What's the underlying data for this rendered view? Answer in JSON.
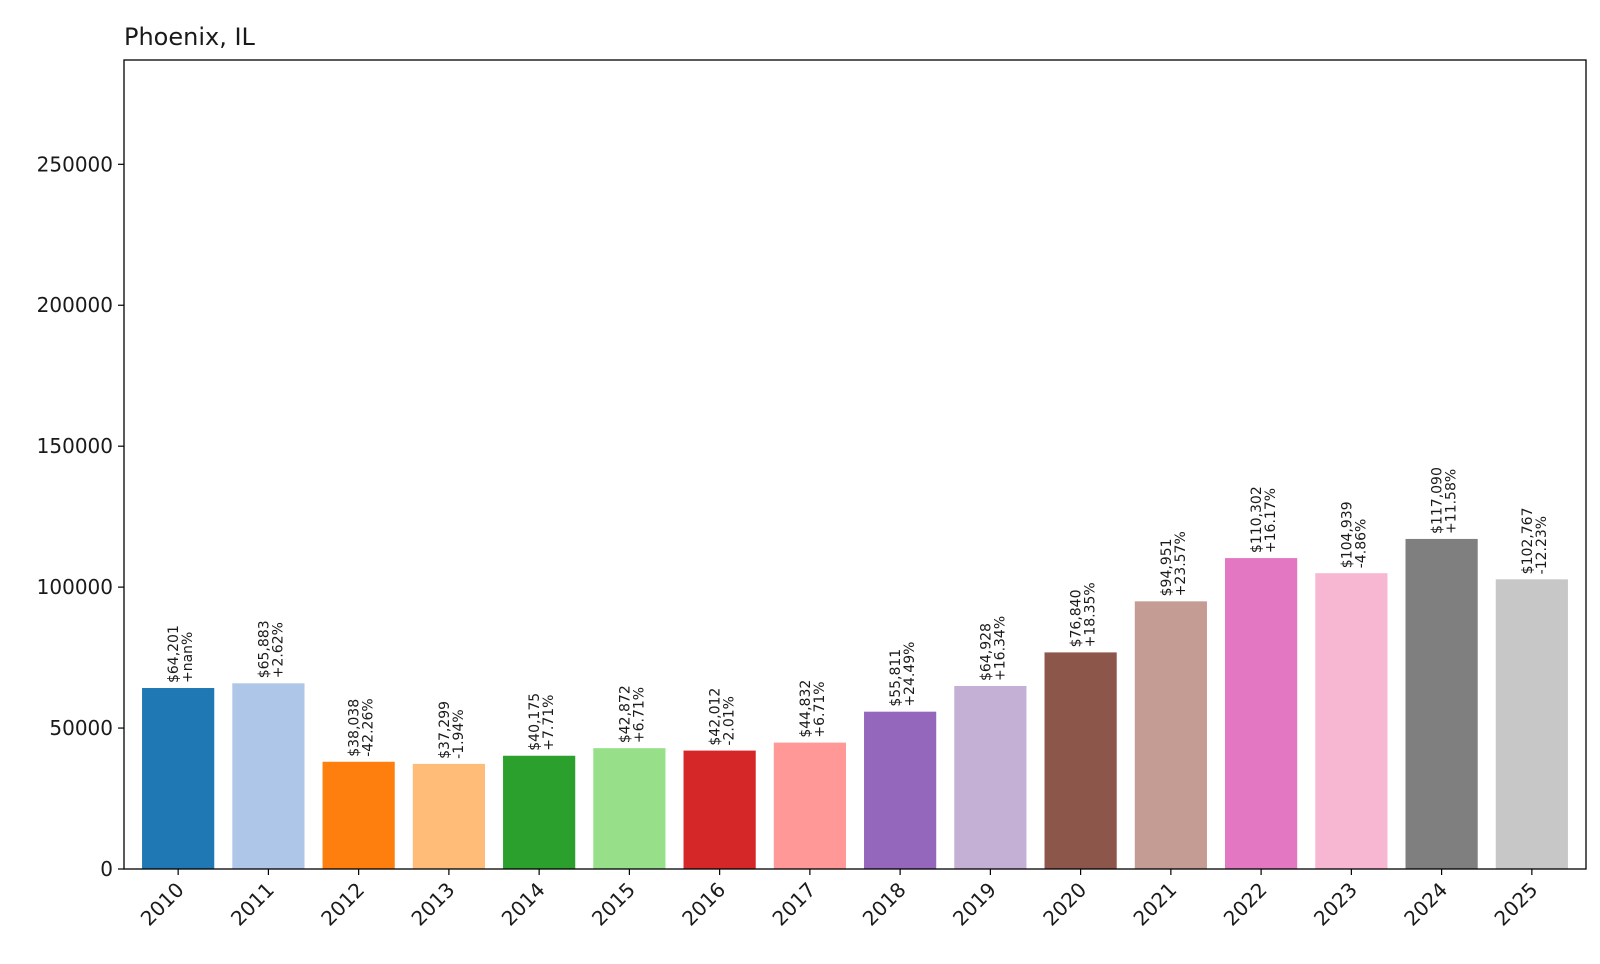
{
  "chart_data": {
    "type": "bar",
    "title": "Phoenix, IL",
    "xlabel": "",
    "ylabel": "",
    "ylim": [
      0,
      287000
    ],
    "yticks": [
      0,
      50000,
      100000,
      150000,
      200000,
      250000
    ],
    "ytick_labels": [
      "0",
      "50000",
      "100000",
      "150000",
      "200000",
      "250000"
    ],
    "grid": false,
    "legend": null,
    "categories": [
      "2010",
      "2011",
      "2012",
      "2013",
      "2014",
      "2015",
      "2016",
      "2017",
      "2018",
      "2019",
      "2020",
      "2021",
      "2022",
      "2023",
      "2024",
      "2025"
    ],
    "values": [
      64201,
      65883,
      38038,
      37299,
      40175,
      42872,
      42012,
      44832,
      55811,
      64928,
      76840,
      94951,
      110302,
      104939,
      117090,
      102767
    ],
    "value_labels": [
      "$64,201",
      "$65,883",
      "$38,038",
      "$37,299",
      "$40,175",
      "$42,872",
      "$42,012",
      "$44,832",
      "$55,811",
      "$64,928",
      "$76,840",
      "$94,951",
      "$110,302",
      "$104,939",
      "$117,090",
      "$102,767"
    ],
    "change_labels": [
      "+nan%",
      "+2.62%",
      "-42.26%",
      "-1.94%",
      "+7.71%",
      "+6.71%",
      "-2.01%",
      "+6.71%",
      "+24.49%",
      "+16.34%",
      "+18.35%",
      "+23.57%",
      "+16.17%",
      "-4.86%",
      "+11.58%",
      "-12.23%"
    ],
    "colors": [
      "#1f77b4",
      "#aec7e8",
      "#ff7f0e",
      "#ffbb78",
      "#2ca02c",
      "#98df8a",
      "#d62728",
      "#ff9896",
      "#9467bd",
      "#c5b0d5",
      "#8c564b",
      "#c49c94",
      "#e377c2",
      "#f7b6d2",
      "#7f7f7f",
      "#c7c7c7"
    ]
  }
}
